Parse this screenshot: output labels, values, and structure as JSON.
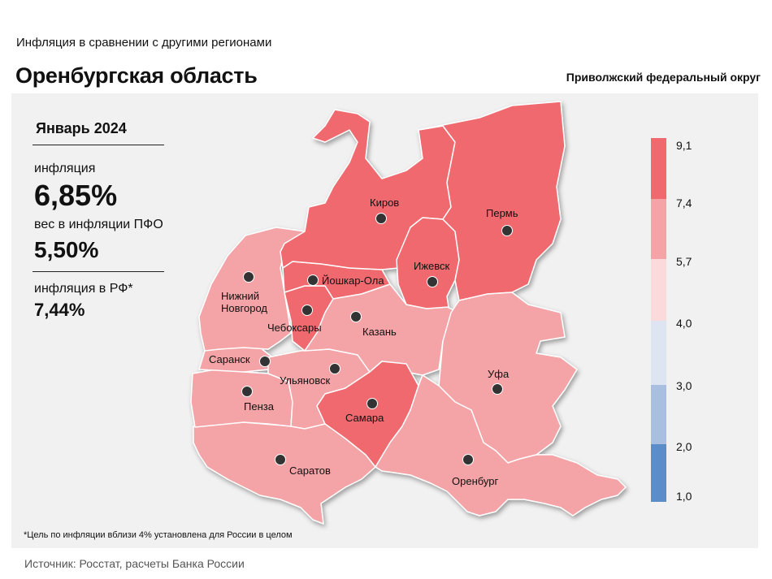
{
  "header": {
    "subtitle": "Инфляция в сравнении с другими регионами",
    "title": "Оренбургская область",
    "district": "Приволжский федеральный округ"
  },
  "stats": {
    "period": "Январь 2024",
    "inflation_label": "инфляция",
    "inflation_value": "6,85%",
    "weight_label": "вес в инфляции ПФО",
    "weight_value": "5,50%",
    "rf_label": "инфляция в РФ*",
    "rf_value": "7,44%"
  },
  "cities": {
    "kirov": "Киров",
    "perm": "Пермь",
    "izhevsk": "Ижевск",
    "yoshkar_ola": "Йошкар-Ола",
    "nizhny_1": "Нижний",
    "nizhny_2": "Новгород",
    "cheboksary": "Чебоксары",
    "kazan": "Казань",
    "saransk": "Саранск",
    "ulyanovsk": "Ульяновск",
    "ufa": "Уфа",
    "penza": "Пенза",
    "samara": "Самара",
    "saratov": "Саратов",
    "orenburg": "Оренбург"
  },
  "legend": {
    "ticks": [
      "9,1",
      "7,4",
      "5,7",
      "4,0",
      "3,0",
      "2,0",
      "1,0"
    ],
    "colors": [
      "#f0696e",
      "#f4a3a6",
      "#fadadb",
      "#dde5f2",
      "#a8bfe0",
      "#5b8dc9"
    ]
  },
  "colors": {
    "high": "#f0696e",
    "mid": "#f4a3a6",
    "panel": "#f1f1f1"
  },
  "footnote": "*Цель по инфляции вблизи 4% установлена для России в целом",
  "source": "Источник: Росстат, расчеты Банка России"
}
